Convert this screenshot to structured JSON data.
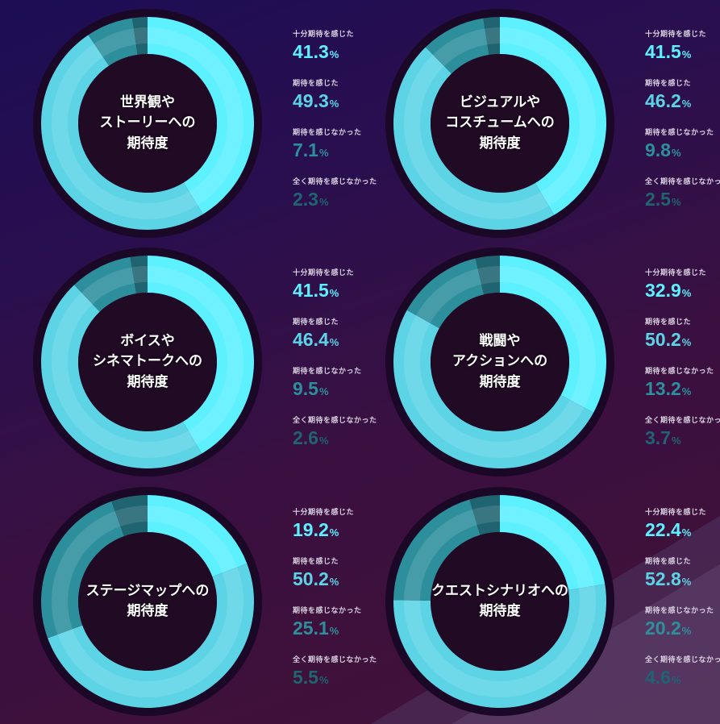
{
  "colors": {
    "very": "#5df0ff",
    "somewhat": "#5cd4e6",
    "not": "#2d8f9c",
    "none": "#1f6470",
    "ring_bg": "#1a0826",
    "center": "#200a24"
  },
  "legend_labels": [
    "十分期待を感じた",
    "期待を感じた",
    "期待を感じなかった",
    "全く期待を感じなかった"
  ],
  "percent_sign": "%",
  "chart_data": [
    {
      "type": "pie",
      "title": "世界観や\nストーリーへの\n期待度",
      "categories": [
        "十分期待を感じた",
        "期待を感じた",
        "期待を感じなかった",
        "全く期待を感じなかった"
      ],
      "values": [
        41.3,
        49.3,
        7.1,
        2.3
      ],
      "labels": [
        "41.3",
        "49.3",
        "7.1",
        "2.3"
      ]
    },
    {
      "type": "pie",
      "title": "ビジュアルや\nコスチュームへの\n期待度",
      "categories": [
        "十分期待を感じた",
        "期待を感じた",
        "期待を感じなかった",
        "全く期待を感じなかった"
      ],
      "values": [
        41.5,
        46.2,
        9.8,
        2.5
      ],
      "labels": [
        "41.5",
        "46.2",
        "9.8",
        "2.5"
      ]
    },
    {
      "type": "pie",
      "title": "ボイスや\nシネマトークへの\n期待度",
      "categories": [
        "十分期待を感じた",
        "期待を感じた",
        "期待を感じなかった",
        "全く期待を感じなかった"
      ],
      "values": [
        41.5,
        46.4,
        9.5,
        2.6
      ],
      "labels": [
        "41.5",
        "46.4",
        "9.5",
        "2.6"
      ]
    },
    {
      "type": "pie",
      "title": "戦闘や\nアクションへの\n期待度",
      "categories": [
        "十分期待を感じた",
        "期待を感じた",
        "期待を感じなかった",
        "全く期待を感じなかった"
      ],
      "values": [
        32.9,
        50.2,
        13.2,
        3.7
      ],
      "labels": [
        "32.9",
        "50.2",
        "13.2",
        "3.7"
      ]
    },
    {
      "type": "pie",
      "title": "ステージマップへの\n期待度",
      "categories": [
        "十分期待を感じた",
        "期待を感じた",
        "期待を感じなかった",
        "全く期待を感じなかった"
      ],
      "values": [
        19.2,
        50.2,
        25.1,
        5.5
      ],
      "labels": [
        "19.2",
        "50.2",
        "25.1",
        "5.5"
      ]
    },
    {
      "type": "pie",
      "title": "クエストシナリオへの\n期待度",
      "categories": [
        "十分期待を感じた",
        "期待を感じた",
        "期待を感じなかった",
        "全く期待を感じなかった"
      ],
      "values": [
        22.4,
        52.8,
        20.2,
        4.6
      ],
      "labels": [
        "22.4",
        "52.8",
        "20.2",
        "4.6"
      ]
    }
  ]
}
